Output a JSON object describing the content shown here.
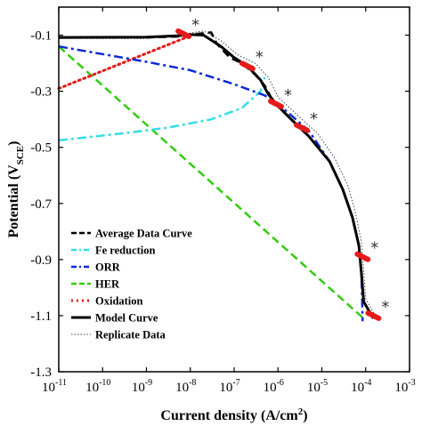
{
  "chart_data": {
    "type": "line",
    "x_scale": "log",
    "xlabel": "Current density (A/cm",
    "xlabel_sup": "2",
    "xlabel_end": ")",
    "ylabel": "Potential (V",
    "ylabel_sub": "SCE",
    "ylabel_end": ")",
    "xlim": [
      1e-11,
      0.001
    ],
    "ylim": [
      -1.3,
      0
    ],
    "x_ticks": [
      {
        "value": 1e-11,
        "base": "10",
        "exp": "-11"
      },
      {
        "value": 1e-10,
        "base": "10",
        "exp": "-10"
      },
      {
        "value": 1e-09,
        "base": "10",
        "exp": "-9"
      },
      {
        "value": 1e-08,
        "base": "10",
        "exp": "-8"
      },
      {
        "value": 1e-07,
        "base": "10",
        "exp": "-7"
      },
      {
        "value": 1e-06,
        "base": "10",
        "exp": "-6"
      },
      {
        "value": 1e-05,
        "base": "10",
        "exp": "-5"
      },
      {
        "value": 0.0001,
        "base": "10",
        "exp": "-4"
      },
      {
        "value": 0.001,
        "base": "10",
        "exp": "-3"
      }
    ],
    "y_ticks": [
      {
        "value": -0.1,
        "label": "-0.1"
      },
      {
        "value": -0.3,
        "label": "-0.3"
      },
      {
        "value": -0.5,
        "label": "-0.5"
      },
      {
        "value": -0.7,
        "label": "-0.7"
      },
      {
        "value": -0.9,
        "label": "-0.9"
      },
      {
        "value": -1.1,
        "label": "-1.1"
      },
      {
        "value": -1.3,
        "label": "-1.3"
      }
    ],
    "grid": false,
    "legend_position": "bottom-left",
    "series": [
      {
        "name": "Average Data Curve",
        "color": "#000000",
        "style": "dashed",
        "width": 2.5,
        "points": [
          [
            1e-11,
            -0.108
          ],
          [
            1e-09,
            -0.108
          ],
          [
            5e-09,
            -0.105
          ],
          [
            1e-08,
            -0.1
          ],
          [
            1.5e-08,
            -0.095
          ],
          [
            3e-08,
            -0.09
          ],
          [
            4e-08,
            -0.13
          ],
          [
            8e-08,
            -0.18
          ],
          [
            1.5e-07,
            -0.2
          ],
          [
            3e-07,
            -0.24
          ],
          [
            5e-07,
            -0.28
          ],
          [
            8e-07,
            -0.34
          ],
          [
            2e-06,
            -0.4
          ],
          [
            5e-06,
            -0.46
          ],
          [
            1.5e-05,
            -0.55
          ],
          [
            3e-05,
            -0.65
          ],
          [
            5e-05,
            -0.75
          ],
          [
            7e-05,
            -0.85
          ],
          [
            8e-05,
            -0.95
          ],
          [
            9e-05,
            -1.05
          ],
          [
            0.00014,
            -1.1
          ]
        ]
      },
      {
        "name": "Fe reduction",
        "color": "#33dde8",
        "style": "dashdot",
        "width": 2.5,
        "points": [
          [
            1e-11,
            -0.475
          ],
          [
            3e-10,
            -0.45
          ],
          [
            3e-09,
            -0.43
          ],
          [
            3e-08,
            -0.4
          ],
          [
            1.5e-07,
            -0.36
          ],
          [
            4e-07,
            -0.3
          ],
          [
            5e-07,
            -0.25
          ]
        ]
      },
      {
        "name": "ORR",
        "color": "#0a2bd6",
        "style": "dashdot",
        "width": 2.5,
        "points": [
          [
            1e-11,
            -0.14
          ],
          [
            1e-09,
            -0.195
          ],
          [
            1e-08,
            -0.225
          ],
          [
            1e-07,
            -0.275
          ],
          [
            5e-07,
            -0.315
          ],
          [
            1e-06,
            -0.345
          ],
          [
            5e-06,
            -0.44
          ],
          [
            1.5e-05,
            -0.55
          ],
          [
            3e-05,
            -0.65
          ],
          [
            5e-05,
            -0.75
          ],
          [
            7e-05,
            -0.85
          ],
          [
            8e-05,
            -0.95
          ],
          [
            8.3e-05,
            -1.05
          ],
          [
            8.5e-05,
            -1.12
          ]
        ]
      },
      {
        "name": "HER",
        "color": "#33cc11",
        "style": "dashed",
        "width": 2.5,
        "points": [
          [
            1e-11,
            -0.14
          ],
          [
            9e-05,
            -1.11
          ]
        ]
      },
      {
        "name": "Oxidation",
        "color": "#e51a1a",
        "style": "dotted",
        "width": 3,
        "points": [
          [
            1e-11,
            -0.29
          ],
          [
            1e-08,
            -0.102
          ]
        ]
      },
      {
        "name": "Model Curve",
        "color": "#000000",
        "style": "solid",
        "width": 3,
        "points": [
          [
            1e-11,
            -0.108
          ],
          [
            1e-09,
            -0.107
          ],
          [
            5e-09,
            -0.102
          ],
          [
            1e-08,
            -0.098
          ],
          [
            2e-08,
            -0.1
          ],
          [
            5e-08,
            -0.14
          ],
          [
            1e-07,
            -0.18
          ],
          [
            2e-07,
            -0.21
          ],
          [
            4e-07,
            -0.26
          ],
          [
            6e-07,
            -0.31
          ],
          [
            9e-07,
            -0.345
          ],
          [
            2e-06,
            -0.4
          ],
          [
            5e-06,
            -0.46
          ],
          [
            1.5e-05,
            -0.55
          ],
          [
            3e-05,
            -0.65
          ],
          [
            5e-05,
            -0.75
          ],
          [
            7e-05,
            -0.85
          ],
          [
            8e-05,
            -0.95
          ],
          [
            9e-05,
            -1.05
          ],
          [
            0.00015,
            -1.11
          ]
        ]
      },
      {
        "name": "Replicate Data",
        "color": "#444444",
        "style": "thin-dotted",
        "width": 1,
        "points": [
          [
            1e-11,
            -0.112
          ],
          [
            1e-09,
            -0.112
          ],
          [
            8e-09,
            -0.095
          ],
          [
            2e-08,
            -0.085
          ],
          [
            5e-08,
            -0.12
          ],
          [
            1.2e-07,
            -0.17
          ],
          [
            3e-07,
            -0.2
          ],
          [
            6e-07,
            -0.25
          ],
          [
            1e-06,
            -0.32
          ],
          [
            3e-06,
            -0.39
          ],
          [
            8e-06,
            -0.45
          ],
          [
            2e-05,
            -0.54
          ],
          [
            4e-05,
            -0.64
          ],
          [
            6e-05,
            -0.74
          ],
          [
            8e-05,
            -0.84
          ],
          [
            9e-05,
            -0.94
          ],
          [
            0.0001,
            -1.04
          ],
          [
            0.00018,
            -1.11
          ]
        ]
      }
    ],
    "markers": [
      {
        "x": 7e-09,
        "y": -0.095
      },
      {
        "x": 2e-07,
        "y": -0.21
      },
      {
        "x": 9e-07,
        "y": -0.345
      },
      {
        "x": 3.5e-06,
        "y": -0.43
      },
      {
        "x": 8.5e-05,
        "y": -0.89
      },
      {
        "x": 0.00015,
        "y": -1.1
      }
    ],
    "annotations": [
      "*",
      "*",
      "*",
      "*",
      "*",
      "*"
    ],
    "marker_color": "#e51a1a"
  }
}
